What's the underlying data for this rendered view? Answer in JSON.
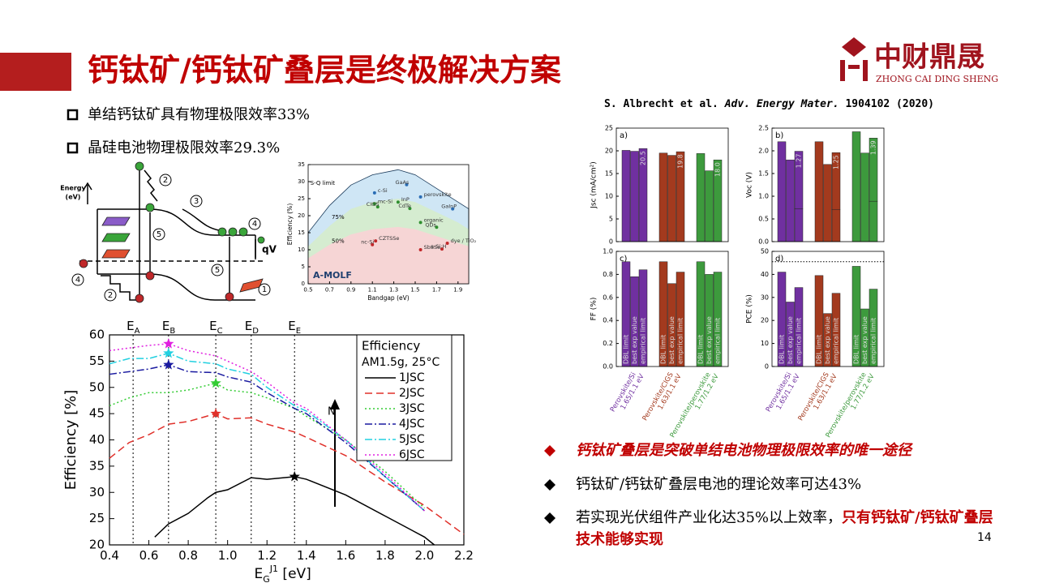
{
  "header": {
    "title": "钙钛矿/钙钛矿叠层是终极解决方案",
    "logo_text": "中财鼎晟",
    "logo_sub": "ZHONG CAI DING SHENG"
  },
  "bullets_left": [
    "单结钙钛矿具有物理极限效率33%",
    "晶硅电池物理极限效率29.3%"
  ],
  "citation": [
    "S. Albrecht et al.",
    "Adv. Energy Mater.",
    "1904102 (2020)"
  ],
  "diagram": {
    "energy": "Energy",
    "energy_unit": "(eV)",
    "qv": "qV",
    "numbers": [
      "1",
      "2",
      "3",
      "4",
      "5"
    ]
  },
  "bullets_right": [
    [
      "钙钛矿叠层是突破单结电池物理极限效率的唯一途径"
    ],
    [
      "钙钛矿/钙钛矿叠层电池的理论效率可达43%"
    ],
    [
      "若实现光伏组件产业化达35%以上效率，",
      "只有钙钛矿/钙钛矿叠层技术能够实现"
    ]
  ],
  "page_number": "14",
  "chart_data": [
    {
      "type": "line",
      "xlabel": {
        "text": "E",
        "sub": "G",
        "sup": "J1",
        "rest": " [eV]"
      },
      "ylabel": "Efficiency [%]",
      "xlim": [
        0.4,
        2.2
      ],
      "ylim": [
        20,
        60
      ],
      "xticks": [
        0.4,
        0.6,
        0.8,
        {
          "value": 1,
          "label": "1.0"
        },
        1.2,
        1.4,
        1.6,
        1.8,
        {
          "value": 2,
          "label": "2.0"
        },
        2.2
      ],
      "yticks": [
        20,
        25,
        30,
        35,
        40,
        45,
        50,
        55,
        60
      ],
      "vlines": [
        {
          "label": "E",
          "sub": "A",
          "x": 0.52
        },
        {
          "label": "E",
          "sub": "B",
          "x": 0.7
        },
        {
          "label": "E",
          "sub": "C",
          "x": 0.94
        },
        {
          "label": "E",
          "sub": "D",
          "x": 1.12
        },
        {
          "label": "E",
          "sub": "E",
          "x": 1.34
        }
      ],
      "legend": {
        "title": "Efficiency",
        "subtitle": "AM1.5g, 25°C",
        "corner": "upper right"
      },
      "annotation": "N",
      "series": [
        {
          "name": "1JSC",
          "color": "#000000",
          "dash": "solid",
          "x": [
            0.63,
            0.7,
            0.8,
            0.9,
            0.94,
            1.0,
            1.12,
            1.2,
            1.34,
            1.4,
            1.6,
            1.8,
            2.0,
            2.05
          ],
          "values": [
            21.5,
            24,
            26,
            29,
            30,
            30.5,
            32.8,
            32.5,
            33,
            32.5,
            29.5,
            25.5,
            21.5,
            20
          ],
          "star": [
            1.34,
            33
          ]
        },
        {
          "name": "2JSC",
          "color": "#e0302a",
          "dash": "dashed",
          "x": [
            0.4,
            0.5,
            0.6,
            0.7,
            0.8,
            0.94,
            1.0,
            1.12,
            1.2,
            1.34,
            1.4,
            1.6,
            1.8,
            2.0,
            2.2
          ],
          "values": [
            36.5,
            39.5,
            41,
            43,
            43.5,
            45,
            44,
            44.2,
            43,
            41.5,
            40.5,
            37,
            32,
            27.5,
            22
          ],
          "star": [
            0.94,
            45
          ]
        },
        {
          "name": "3JSC",
          "color": "#33cc33",
          "dash": "dotted",
          "x": [
            0.4,
            0.5,
            0.6,
            0.7,
            0.8,
            0.94,
            1.0,
            1.12,
            1.2,
            1.34,
            1.4,
            1.6,
            1.8,
            2.0
          ],
          "values": [
            46.5,
            48,
            49,
            49,
            49.5,
            50.8,
            49.5,
            49,
            48,
            46,
            44.5,
            40,
            34,
            27
          ],
          "star": [
            0.94,
            50.8
          ]
        },
        {
          "name": "4JSC",
          "color": "#1a1aa0",
          "dash": "dashdot",
          "x": [
            0.4,
            0.5,
            0.6,
            0.7,
            0.8,
            0.94,
            1.0,
            1.12,
            1.2,
            1.34,
            1.4,
            1.6,
            1.8,
            2.0
          ],
          "values": [
            52.5,
            53,
            53.5,
            54.3,
            53,
            52.8,
            52,
            51,
            49,
            46,
            45,
            39.5,
            33,
            26.5
          ],
          "star": [
            0.7,
            54.3
          ]
        },
        {
          "name": "5JSC",
          "color": "#22d0e0",
          "dash": "dashdot",
          "x": [
            0.4,
            0.5,
            0.6,
            0.7,
            0.8,
            0.94,
            1.0,
            1.12,
            1.2,
            1.34,
            1.4,
            1.6,
            1.8,
            2.0
          ],
          "values": [
            54.5,
            55.5,
            55.5,
            56.5,
            55,
            54.5,
            53.5,
            52.5,
            50,
            46.5,
            45.5,
            40,
            33,
            26.5
          ],
          "star": [
            0.7,
            56.5
          ]
        },
        {
          "name": "6JSC",
          "color": "#e020e0",
          "dash": "dotted",
          "x": [
            0.4,
            0.5,
            0.6,
            0.7,
            0.8,
            0.94,
            1.0,
            1.12,
            1.2,
            1.34,
            1.4,
            1.6,
            1.8,
            2.0
          ],
          "values": [
            57,
            57.5,
            58,
            58.3,
            57,
            56,
            55,
            53,
            51,
            47,
            46,
            40,
            33.5,
            26.5
          ],
          "star": [
            0.7,
            58.3
          ]
        }
      ]
    },
    {
      "type": "area",
      "xlabel": "Bandgap (eV)",
      "ylabel": "Efficiency (%)",
      "watermark": "A-MOLF",
      "xlim": [
        0.5,
        2.0
      ],
      "ylim": [
        0,
        35
      ],
      "xticks": [
        0.5,
        0.7,
        0.9,
        1.1,
        1.3,
        1.5,
        1.7,
        1.9
      ],
      "yticks": [
        0,
        5,
        10,
        15,
        20,
        25,
        30,
        35
      ],
      "series": [
        {
          "name": "S-Q limit",
          "color": "#cfe6f5",
          "x": [
            0.5,
            0.7,
            0.9,
            1.1,
            1.34,
            1.5,
            1.7,
            1.9,
            2.0
          ],
          "values": [
            15,
            23,
            29,
            32,
            33.5,
            32,
            28,
            24,
            22
          ]
        },
        {
          "name": "75%",
          "color": "#d5ecd0",
          "x": [
            0.5,
            0.7,
            0.9,
            1.1,
            1.34,
            1.5,
            1.7,
            1.9,
            2.0
          ],
          "values": [
            11,
            17,
            22,
            24,
            25,
            24,
            21,
            18,
            16
          ]
        },
        {
          "name": "50%",
          "color": "#f6d5d5",
          "x": [
            0.5,
            0.7,
            0.9,
            1.1,
            1.34,
            1.5,
            1.7,
            1.9,
            2.0
          ],
          "values": [
            7.5,
            11.5,
            14.5,
            16,
            16.7,
            16,
            14,
            12,
            11
          ]
        }
      ],
      "points": [
        {
          "label": "c-Si",
          "x": 1.12,
          "y": 26.7,
          "color": "#2a6db5"
        },
        {
          "label": "GaAs",
          "x": 1.42,
          "y": 29.1,
          "color": "#2a6db5"
        },
        {
          "label": "perovskite",
          "x": 1.55,
          "y": 25.5,
          "color": "#2a6db5"
        },
        {
          "label": "GaInP",
          "x": 1.85,
          "y": 22,
          "color": "#2a6db5"
        },
        {
          "label": "mc-Si",
          "x": 1.12,
          "y": 23.5,
          "color": "#2f8f2f"
        },
        {
          "label": "CIGS",
          "x": 1.15,
          "y": 22.6,
          "color": "#2f8f2f"
        },
        {
          "label": "InP",
          "x": 1.34,
          "y": 24,
          "color": "#2f8f2f"
        },
        {
          "label": "CdTe",
          "x": 1.45,
          "y": 22.1,
          "color": "#2f8f2f"
        },
        {
          "label": "organic",
          "x": 1.55,
          "y": 18,
          "color": "#2f8f2f"
        },
        {
          "label": "QDs",
          "x": 1.7,
          "y": 16.6,
          "color": "#2f8f2f"
        },
        {
          "label": "CZTSSe",
          "x": 1.13,
          "y": 12.6,
          "color": "#c0282a"
        },
        {
          "label": "nc-Si",
          "x": 1.1,
          "y": 11.5,
          "color": "#c0282a"
        },
        {
          "label": "SbSSe",
          "x": 1.55,
          "y": 10,
          "color": "#c0282a"
        },
        {
          "label": "a-Si:H",
          "x": 1.75,
          "y": 10.2,
          "color": "#c0282a"
        },
        {
          "label": "dye / TiO₂",
          "x": 1.8,
          "y": 11.9,
          "color": "#c0282a"
        }
      ]
    },
    {
      "type": "bar",
      "panel": "a)",
      "ylabel": "Jsc (mA/cm²)",
      "ylim": [
        0,
        25
      ],
      "yticks": [
        0,
        5,
        10,
        15,
        20,
        25
      ],
      "categories": [
        null,
        null,
        null
      ],
      "colors": [
        "#7030a0",
        "#a33a1e",
        "#3d9a3d"
      ],
      "series": [
        {
          "values": [
            20.1,
            19.5,
            19.4
          ]
        },
        {
          "values": [
            19.9,
            19.0,
            15.6
          ]
        },
        {
          "values": [
            20.5,
            19.8,
            18.0
          ],
          "value_labels": [
            "20.5",
            "19.8",
            "18.0"
          ]
        }
      ]
    },
    {
      "type": "bar",
      "panel": "b)",
      "ylabel": "Voc (V)",
      "ylim": [
        0,
        2.5
      ],
      "yticks": [
        {
          "value": 0,
          "label": "0.0"
        },
        0.5,
        {
          "value": 1,
          "label": "1.0"
        },
        1.5,
        {
          "value": 2,
          "label": "2.0"
        },
        2.5
      ],
      "categories": [
        null,
        null,
        null
      ],
      "colors": [
        "#7030a0",
        "#a33a1e",
        "#3d9a3d"
      ],
      "series": [
        {
          "values": [
            2.2,
            2.2,
            2.42
          ]
        },
        {
          "values": [
            1.8,
            1.7,
            1.95
          ]
        },
        {
          "values": [
            0.72,
            0.71,
            0.89
          ]
        },
        {
          "values": [
            1.27,
            1.25,
            1.39
          ],
          "stacked": true
        }
      ]
    },
    {
      "type": "bar",
      "panel": "c)",
      "ylabel": "FF (%)",
      "ylim": [
        0,
        1
      ],
      "yticks": [
        {
          "value": 0,
          "label": "0.0"
        },
        0.2,
        0.4,
        0.6,
        0.8,
        {
          "value": 1,
          "label": "1.0"
        }
      ],
      "categories": [
        "Perovskite/Si",
        "Perovskite/CIGS",
        "Perovskite/perovskite"
      ],
      "category_sublabels": [
        "1.65/1.1 eV",
        "1.63/1.1 eV",
        "1.77/1.2 eV"
      ],
      "colors": [
        "#7030a0",
        "#a33a1e",
        "#3d9a3d"
      ],
      "series": [
        {
          "name": "DBL limit",
          "values": [
            0.91,
            0.91,
            0.91
          ]
        },
        {
          "name": "best exp value",
          "values": [
            0.78,
            0.72,
            0.8
          ]
        },
        {
          "name": "empirical limit",
          "values": [
            0.84,
            0.82,
            0.82
          ]
        }
      ]
    },
    {
      "type": "bar",
      "panel": "d)",
      "ylabel": "PCE (%)",
      "ylim": [
        0,
        50
      ],
      "yticks": [
        0,
        10,
        20,
        30,
        40,
        50
      ],
      "reference_line": 45.5,
      "categories": [
        "Perovskite/Si",
        "Perovskite/CIGS",
        "Perovskite/perovskite"
      ],
      "category_sublabels": [
        "1.65/1.1 eV",
        "1.63/1.1 eV",
        "1.77/1.2 eV"
      ],
      "colors": [
        "#7030a0",
        "#a33a1e",
        "#3d9a3d"
      ],
      "series": [
        {
          "name": "DBL limit",
          "values": [
            41,
            39.5,
            43.5
          ]
        },
        {
          "name": "best exp value",
          "values": [
            28,
            23,
            25
          ]
        },
        {
          "name": "empirical limit",
          "values": [
            34.3,
            31.8,
            33.6
          ]
        }
      ]
    }
  ]
}
